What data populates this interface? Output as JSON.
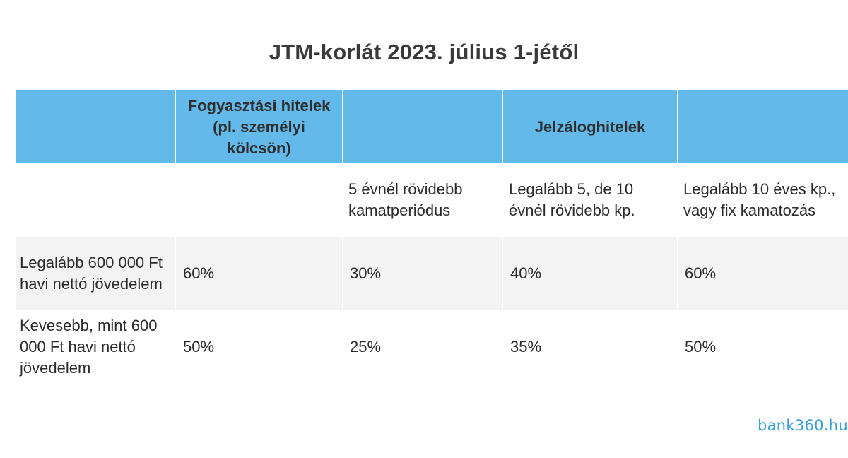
{
  "title": "JTM-korlát 2023. július 1-jétől",
  "header": {
    "col1": "",
    "col2": "Fogyasztási hitelek (pl. személyi kölcsön)",
    "col3": "",
    "col4": "Jelzáloghitelek",
    "col5": ""
  },
  "subheader": {
    "col1": "",
    "col2": "",
    "col3": "5 évnél rövidebb kamatperiódus",
    "col4": "Legalább 5, de 10 évnél rövidebb kp.",
    "col5": "Legalább 10 éves kp., vagy fix kamatozás"
  },
  "rows": [
    {
      "label": "Legalább 600 000 Ft havi nettó jövedelem",
      "values": [
        "60%",
        "30%",
        "40%",
        "60%"
      ]
    },
    {
      "label": "Kevesebb, mint 600 000 Ft havi nettó jövedelem",
      "values": [
        "50%",
        "25%",
        "35%",
        "50%"
      ]
    }
  ],
  "logo": "bank360.hu",
  "colors": {
    "header_bg": "#63b9e9",
    "stripe_bg": "#f3f3f3",
    "logo": "#3a9fd8"
  }
}
